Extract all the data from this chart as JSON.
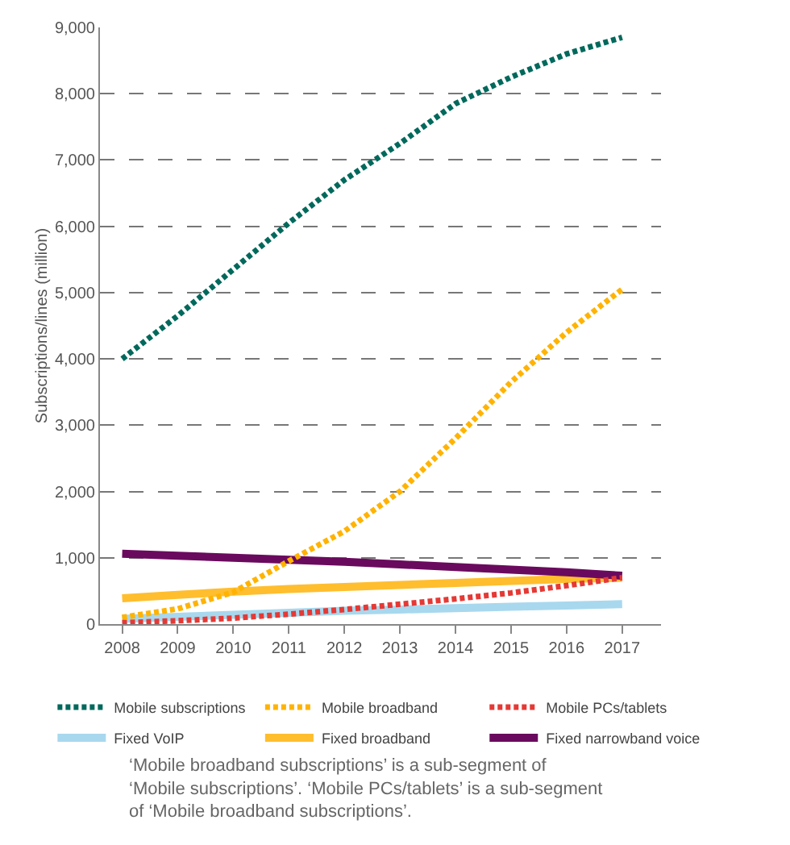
{
  "chart_data": {
    "type": "line",
    "ylabel": "Subscriptions/lines (million)",
    "x": [
      2008,
      2009,
      2010,
      2011,
      2012,
      2013,
      2014,
      2015,
      2016,
      2017
    ],
    "xlim": [
      2007.6,
      2017.7
    ],
    "xticks": [
      2008,
      2009,
      2010,
      2011,
      2012,
      2013,
      2014,
      2015,
      2016,
      2017
    ],
    "ylim": [
      0,
      9000
    ],
    "yticks": [
      {
        "value": 0,
        "label": "0"
      },
      {
        "value": 1000,
        "label": "1,000"
      },
      {
        "value": 2000,
        "label": "2,000"
      },
      {
        "value": 3000,
        "label": "3,000"
      },
      {
        "value": 4000,
        "label": "4,000"
      },
      {
        "value": 5000,
        "label": "5,000"
      },
      {
        "value": 6000,
        "label": "6,000"
      },
      {
        "value": 7000,
        "label": "7,000"
      },
      {
        "value": 8000,
        "label": "8,000"
      },
      {
        "value": 9000,
        "label": "9,000"
      }
    ],
    "grid": "y",
    "legend": "bottom",
    "marker": "none",
    "series": [
      {
        "name": "Mobile subscriptions",
        "color": "#00695c",
        "line_style": "dotted",
        "values": [
          4000,
          4650,
          5350,
          6050,
          6700,
          7250,
          7850,
          8250,
          8600,
          8850
        ]
      },
      {
        "name": "Mobile broadband",
        "color": "#ffb300",
        "line_style": "dotted",
        "values": [
          100,
          230,
          480,
          950,
          1400,
          2000,
          2800,
          3650,
          4400,
          5050
        ]
      },
      {
        "name": "Mobile PCs/tablets",
        "color": "#e53935",
        "line_style": "dotted",
        "values": [
          20,
          50,
          90,
          150,
          220,
          300,
          380,
          470,
          580,
          700
        ]
      },
      {
        "name": "Fixed VoIP",
        "color": "#a8d8ee",
        "line_style": "solid",
        "values": [
          80,
          110,
          140,
          170,
          200,
          220,
          240,
          260,
          280,
          300
        ]
      },
      {
        "name": "Fixed broadband",
        "color": "#ffbe2e",
        "line_style": "solid",
        "values": [
          390,
          440,
          490,
          530,
          560,
          590,
          620,
          650,
          680,
          700
        ]
      },
      {
        "name": "Fixed narrowband voice",
        "color": "#6a0a5e",
        "line_style": "solid",
        "values": [
          1060,
          1030,
          1000,
          970,
          940,
          900,
          860,
          820,
          780,
          730
        ]
      }
    ],
    "annotations": [
      "‘Mobile broadband subscriptions’ is a sub-segment of\n‘Mobile subscriptions’. ‘Mobile PCs/tablets’ is a sub-segment\nof ‘Mobile broadband subscriptions’."
    ]
  }
}
